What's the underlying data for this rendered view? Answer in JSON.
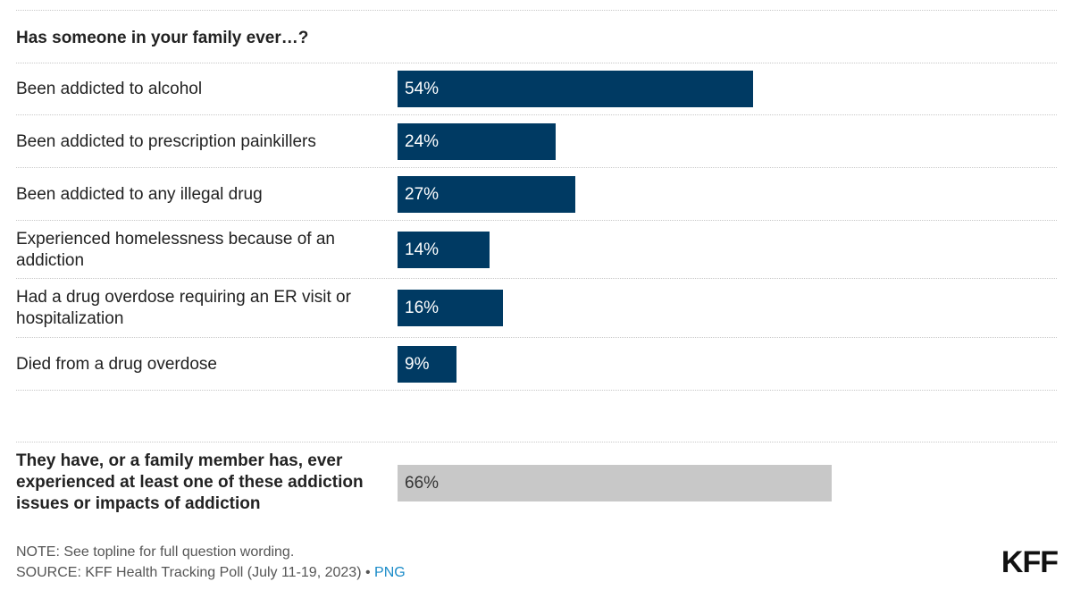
{
  "chart_data": {
    "type": "bar",
    "orientation": "horizontal",
    "title": "Has someone in your family ever…?",
    "categories": [
      "Been addicted to alcohol",
      "Been addicted to prescription painkillers",
      "Been addicted to any illegal drug",
      "Experienced homelessness because of an addiction",
      "Had a drug overdose requiring an ER visit or hospitalization",
      "Died from a drug overdose"
    ],
    "values": [
      54,
      24,
      27,
      14,
      16,
      9
    ],
    "value_labels": [
      "54%",
      "24%",
      "27%",
      "14%",
      "16%",
      "9%"
    ],
    "bar_color": "#003a63",
    "summary": {
      "category": "They have, or a family member has, ever experienced at least one of these addiction issues or impacts of addiction",
      "value": 66,
      "value_label": "66%",
      "bar_color": "#c8c8c8"
    },
    "xlim": [
      0,
      100
    ]
  },
  "footer": {
    "note": "NOTE: See topline for full question wording.",
    "source": "SOURCE: KFF Health Tracking Poll (July 11-19, 2023) •",
    "png_link": "PNG",
    "logo": "KFF"
  }
}
